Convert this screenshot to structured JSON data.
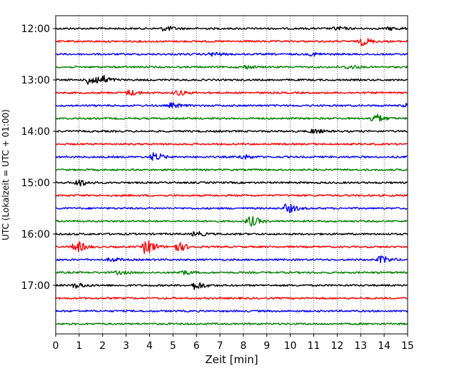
{
  "chart_data": {
    "type": "line",
    "title": "",
    "xlabel": "Zeit  [min]",
    "ylabel": "UTC (Lokalzeit = UTC + 01:00)",
    "xlim": [
      0,
      15
    ],
    "x_ticks": [
      "0",
      "1",
      "2",
      "3",
      "4",
      "5",
      "6",
      "7",
      "8",
      "9",
      "10",
      "11",
      "12",
      "13",
      "14",
      "15"
    ],
    "y_tick_labels": [
      "12:00",
      "13:00",
      "14:00",
      "15:00",
      "16:00",
      "17:00"
    ],
    "trace_interval_minutes": 15,
    "grid": "vertical dotted at each minute",
    "trace_colors": [
      "#000000",
      "#ff0000",
      "#0000ff",
      "#008000"
    ],
    "traces": [
      {
        "start": "12:00",
        "color": "#000000",
        "events": [
          [
            4.6,
            1.3
          ],
          [
            11.9,
            1.0
          ],
          [
            14.2,
            0.8
          ]
        ]
      },
      {
        "start": "12:15",
        "color": "#ff0000",
        "events": [
          [
            13.0,
            2.2
          ]
        ]
      },
      {
        "start": "12:30",
        "color": "#0000ff",
        "events": [
          [
            6.6,
            1.0
          ],
          [
            10.9,
            0.8
          ]
        ]
      },
      {
        "start": "12:45",
        "color": "#008000",
        "events": [
          [
            8.0,
            0.9
          ],
          [
            12.4,
            1.0
          ]
        ]
      },
      {
        "start": "13:00",
        "color": "#000000",
        "events": [
          [
            1.4,
            3.2
          ],
          [
            1.9,
            2.0
          ]
        ]
      },
      {
        "start": "13:15",
        "color": "#ff0000",
        "events": [
          [
            3.1,
            1.5
          ],
          [
            5.1,
            1.4
          ]
        ]
      },
      {
        "start": "13:30",
        "color": "#0000ff",
        "events": [
          [
            4.9,
            1.3
          ],
          [
            14.9,
            1.2
          ]
        ]
      },
      {
        "start": "13:45",
        "color": "#008000",
        "events": [
          [
            13.5,
            2.6
          ]
        ]
      },
      {
        "start": "14:00",
        "color": "#000000",
        "events": [
          [
            10.9,
            1.2
          ]
        ]
      },
      {
        "start": "14:15",
        "color": "#ff0000",
        "events": []
      },
      {
        "start": "14:30",
        "color": "#0000ff",
        "events": [
          [
            4.1,
            2.4
          ],
          [
            7.9,
            1.2
          ]
        ]
      },
      {
        "start": "14:45",
        "color": "#008000",
        "events": []
      },
      {
        "start": "15:00",
        "color": "#000000",
        "events": [
          [
            0.9,
            2.0
          ]
        ]
      },
      {
        "start": "15:15",
        "color": "#ff0000",
        "events": []
      },
      {
        "start": "15:30",
        "color": "#0000ff",
        "events": [
          [
            9.8,
            2.5
          ]
        ]
      },
      {
        "start": "15:45",
        "color": "#008000",
        "events": [
          [
            8.2,
            3.0
          ]
        ]
      },
      {
        "start": "16:00",
        "color": "#000000",
        "events": [
          [
            5.9,
            1.3
          ]
        ]
      },
      {
        "start": "16:15",
        "color": "#ff0000",
        "events": [
          [
            0.8,
            3.2
          ],
          [
            3.8,
            4.0
          ],
          [
            5.1,
            2.6
          ]
        ]
      },
      {
        "start": "16:30",
        "color": "#0000ff",
        "events": [
          [
            2.3,
            1.0
          ],
          [
            13.8,
            2.0
          ]
        ]
      },
      {
        "start": "16:45",
        "color": "#008000",
        "events": [
          [
            5.3,
            1.2
          ],
          [
            2.6,
            0.8
          ]
        ]
      },
      {
        "start": "17:00",
        "color": "#000000",
        "events": [
          [
            0.8,
            1.5
          ],
          [
            5.9,
            2.2
          ]
        ]
      },
      {
        "start": "17:15",
        "color": "#ff0000",
        "events": []
      },
      {
        "start": "17:30",
        "color": "#0000ff",
        "events": []
      },
      {
        "start": "17:45",
        "color": "#008000",
        "events": []
      }
    ]
  }
}
